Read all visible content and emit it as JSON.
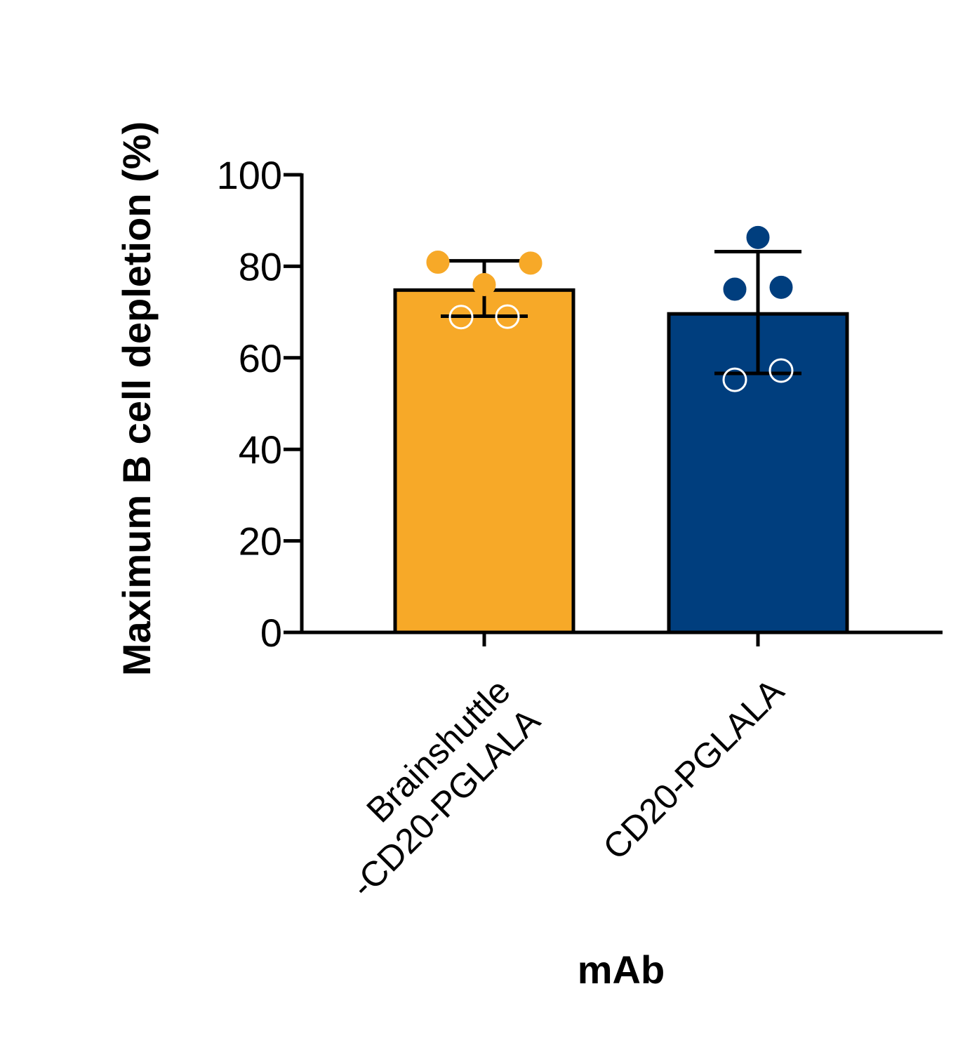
{
  "chart_data": {
    "type": "bar",
    "xlabel": "mAb",
    "ylabel": "Maximum B cell depletion (%)",
    "ylim": [
      0,
      100
    ],
    "yticks": [
      0,
      20,
      40,
      60,
      80,
      100
    ],
    "categories": [
      {
        "lines": [
          "Brainshuttle",
          "-CD20-PGLALA"
        ]
      },
      {
        "lines": [
          "CD20-PGLALA"
        ]
      }
    ],
    "values": [
      74.8,
      69.6
    ],
    "error": [
      {
        "low": 69.1,
        "high": 81.2
      },
      {
        "low": 56.6,
        "high": 83.2
      }
    ],
    "points": [
      [
        {
          "y": 80.9,
          "filled": true
        },
        {
          "y": 80.7,
          "filled": true
        },
        {
          "y": 76.0,
          "filled": true
        },
        {
          "y": 68.9,
          "filled": false
        },
        {
          "y": 69.0,
          "filled": false
        }
      ],
      [
        {
          "y": 86.3,
          "filled": true
        },
        {
          "y": 75.0,
          "filled": true
        },
        {
          "y": 75.4,
          "filled": true
        },
        {
          "y": 55.2,
          "filled": false
        },
        {
          "y": 57.2,
          "filled": false
        }
      ]
    ],
    "colors": [
      "#F7A928",
      "#003E7E"
    ],
    "legend": "none",
    "grid": false
  }
}
